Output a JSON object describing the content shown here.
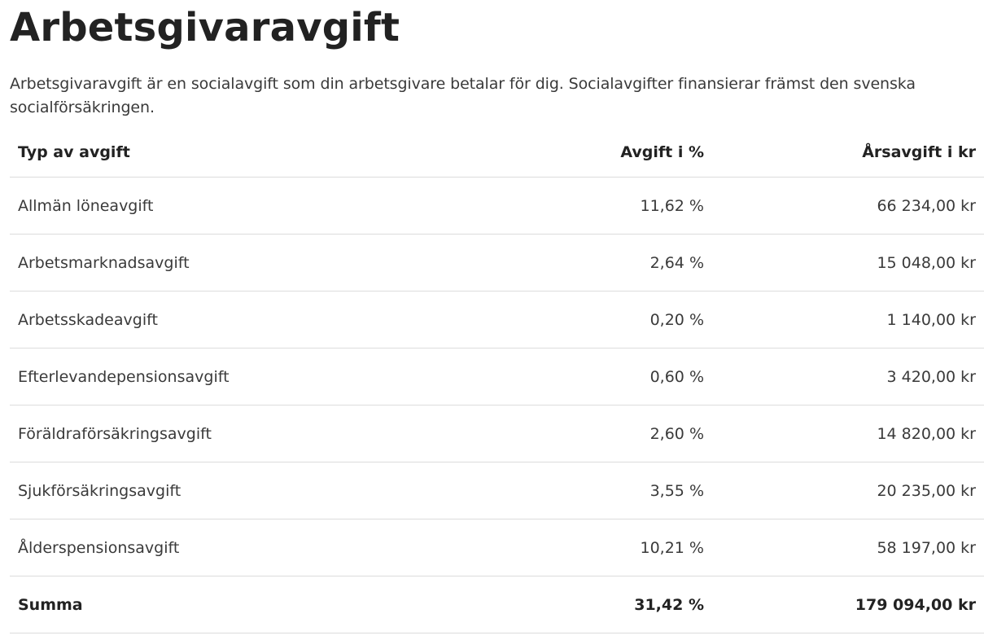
{
  "heading": "Arbetsgivaravgift",
  "intro": "Arbetsgivaravgift är en socialavgift som din arbetsgivare betalar för dig. Socialavgifter finansierar främst den svenska socialförsäkringen.",
  "table": {
    "headers": {
      "type": "Typ av avgift",
      "percent": "Avgift i %",
      "annual": "Årsavgift i kr"
    },
    "rows": [
      {
        "type": "Allmän löneavgift",
        "percent": "11,62 %",
        "annual": "66 234,00 kr"
      },
      {
        "type": "Arbetsmarknadsavgift",
        "percent": "2,64 %",
        "annual": "15 048,00 kr"
      },
      {
        "type": "Arbetsskadeavgift",
        "percent": "0,20 %",
        "annual": "1 140,00 kr"
      },
      {
        "type": "Efterlevandepensionsavgift",
        "percent": "0,60 %",
        "annual": "3 420,00 kr"
      },
      {
        "type": "Föräldraförsäkringsavgift",
        "percent": "2,60 %",
        "annual": "14 820,00 kr"
      },
      {
        "type": "Sjukförsäkringsavgift",
        "percent": "3,55 %",
        "annual": "20 235,00 kr"
      },
      {
        "type": "Ålderspensionsavgift",
        "percent": "10,21 %",
        "annual": "58 197,00 kr"
      }
    ],
    "total": {
      "type": "Summa",
      "percent": "31,42 %",
      "annual": "179 094,00 kr"
    }
  }
}
